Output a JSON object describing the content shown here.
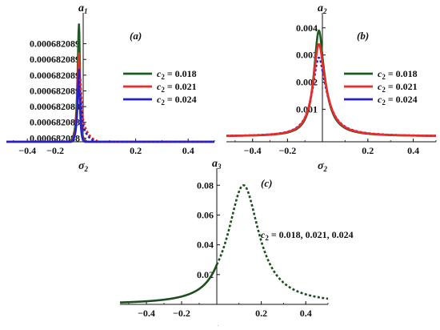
{
  "colors": {
    "c2_0018": "#1e5b1e",
    "c2_0021": "#ef2a2a",
    "c2_0024": "#2222cc",
    "combined": "#1e4d1e",
    "axis": "#111111"
  },
  "chart_data": [
    {
      "id": "a",
      "type": "line",
      "panel_label": "(a)",
      "ylabel": "a",
      "ylabel_sub": "1",
      "xlabel": "σ",
      "xlabel_sub": "2",
      "xlim": [
        -0.55,
        0.5
      ],
      "ylim": [
        0.00068208794,
        0.00068208923
      ],
      "xticks": [
        -0.4,
        -0.2,
        0.2,
        0.4
      ],
      "xtick_labels": [
        "−0.4",
        "−0.2",
        "0.2",
        "0.4"
      ],
      "ytick_labels": [
        "0.000682089",
        "0.000682089",
        "0.000682089",
        "0.000682089",
        "0.000682088",
        "0.000682088",
        "0.000682088"
      ],
      "ytick_values": [
        0.000682089,
        0.00068208883,
        0.00068208866,
        0.00068208849,
        0.00068208832,
        0.00068208815,
        0.00068208798
      ],
      "legend": {
        "placement": "right",
        "entries": [
          {
            "prefix": "c",
            "sub": "2",
            "suffix": " = 0.018",
            "color_key": "c2_0018"
          },
          {
            "prefix": "c",
            "sub": "2",
            "suffix": " = 0.021",
            "color_key": "c2_0021"
          },
          {
            "prefix": "c",
            "sub": "2",
            "suffix": " = 0.024",
            "color_key": "c2_0024"
          }
        ]
      },
      "series": [
        {
          "color_key": "c2_0018",
          "dash": false,
          "peak_x": -0.03,
          "peak_y": 0.00068208921,
          "base_y": 0.0006820879,
          "gamma_left": 0.012,
          "gamma_right": 0.008
        },
        {
          "color_key": "c2_0021",
          "dash": false,
          "peak_x": -0.03,
          "peak_y": 0.0006820889,
          "base_y": 0.0006820879,
          "gamma_left": 0.012,
          "gamma_right": 0.008
        },
        {
          "color_key": "c2_0024",
          "dash": false,
          "peak_x": -0.03,
          "peak_y": 0.00068208872,
          "base_y": 0.0006820879,
          "gamma_left": 0.012,
          "gamma_right": 0.008
        },
        {
          "color_key": "c2_0021",
          "dash": true,
          "peak_x": -0.03,
          "peak_y": 0.0006820888,
          "base_y": 0.0006820879,
          "gamma_left": 0.012,
          "gamma_right": 0.02,
          "from_x": -0.02
        },
        {
          "color_key": "c2_0024",
          "dash": true,
          "peak_x": -0.03,
          "peak_y": 0.0006820886,
          "base_y": 0.0006820879,
          "gamma_left": 0.012,
          "gamma_right": 0.02,
          "from_x": -0.02
        }
      ]
    },
    {
      "id": "b",
      "type": "line",
      "panel_label": "(b)",
      "ylabel": "a",
      "ylabel_sub": "2",
      "xlabel": "σ",
      "xlabel_sub": "2",
      "xlim": [
        -0.55,
        0.5
      ],
      "ylim": [
        -0.0002,
        0.0042
      ],
      "xticks": [
        -0.4,
        -0.2,
        0.2,
        0.4
      ],
      "xtick_labels": [
        "−0.4",
        "−0.2",
        "0.2",
        "0.4"
      ],
      "ytick_labels": [
        "0.004",
        "0.003",
        "0.002",
        "0.001"
      ],
      "ytick_values": [
        0.004,
        0.003,
        0.002,
        0.001
      ],
      "legend": {
        "placement": "right",
        "entries": [
          {
            "prefix": "c",
            "sub": "2",
            "suffix": " = 0.018",
            "color_key": "c2_0018"
          },
          {
            "prefix": "c",
            "sub": "2",
            "suffix": " = 0.021",
            "color_key": "c2_0021"
          },
          {
            "prefix": "c",
            "sub": "2",
            "suffix": " = 0.024",
            "color_key": "c2_0024"
          }
        ]
      },
      "series": [
        {
          "color_key": "c2_0018",
          "dash": false,
          "peak_x": -0.02,
          "peak_y": 0.0039,
          "base_y": 0.0,
          "gamma_left": 0.035,
          "gamma_right": 0.035
        },
        {
          "color_key": "c2_0024",
          "dash": true,
          "peak_x": -0.02,
          "peak_y": 0.0029,
          "base_y": 0.0,
          "gamma_left": 0.045,
          "gamma_right": 0.045
        },
        {
          "color_key": "c2_0021",
          "dash": false,
          "peak_x": -0.02,
          "peak_y": 0.0034,
          "base_y": 0.0,
          "gamma_left": 0.04,
          "gamma_right": 0.04
        }
      ]
    },
    {
      "id": "c",
      "type": "line",
      "panel_label": "(c)",
      "ylabel": "a",
      "ylabel_sub": "3",
      "xlabel": "σ",
      "xlabel_sub": "2",
      "xlim": [
        -0.55,
        0.5
      ],
      "ylim": [
        0.0,
        0.085
      ],
      "xticks": [
        -0.4,
        -0.2,
        0.2,
        0.4
      ],
      "xtick_labels": [
        "−0.4",
        "−0.2",
        "0.2",
        "0.4"
      ],
      "ytick_labels": [
        "0.08",
        "0.06",
        "0.04",
        "0.02"
      ],
      "ytick_values": [
        0.08,
        0.06,
        0.04,
        0.02
      ],
      "annotation": {
        "prefix": "c",
        "sub": "2",
        "suffix": " = 0.018, 0.021, 0.024"
      },
      "series": [
        {
          "color_key": "combined",
          "dash": false,
          "peak_x": 0.12,
          "peak_y": 0.08,
          "base_y": 0.0,
          "gamma_left": 0.085,
          "gamma_right": 0.085,
          "to_x": 0.0
        },
        {
          "color_key": "combined",
          "dash": true,
          "peak_x": 0.12,
          "peak_y": 0.08,
          "base_y": 0.0,
          "gamma_left": 0.085,
          "gamma_right": 0.085,
          "from_x": 0.0
        }
      ]
    }
  ]
}
